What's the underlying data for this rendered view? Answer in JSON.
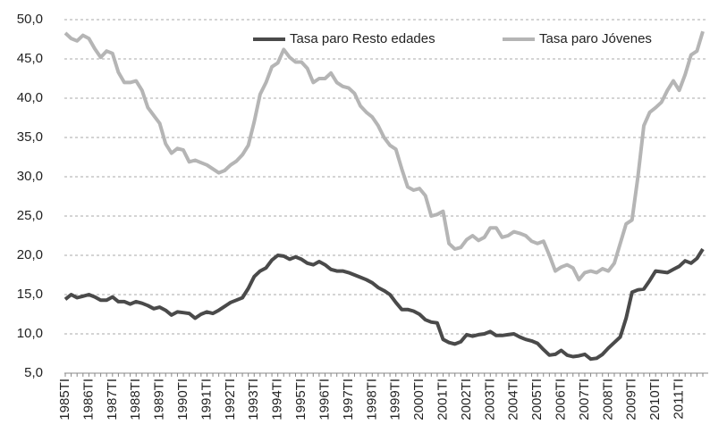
{
  "chart_data": {
    "type": "line",
    "categories": [
      "1985TI",
      null,
      null,
      null,
      "1986TI",
      null,
      null,
      null,
      "1987TI",
      null,
      null,
      null,
      "1988TI",
      null,
      null,
      null,
      "1989TI",
      null,
      null,
      null,
      "1990TI",
      null,
      null,
      null,
      "1991TI",
      null,
      null,
      null,
      "1992TI",
      null,
      null,
      null,
      "1993TI",
      null,
      null,
      null,
      "1994TI",
      null,
      null,
      null,
      "1995TI",
      null,
      null,
      null,
      "1996TI",
      null,
      null,
      null,
      "1997TI",
      null,
      null,
      null,
      "1998TI",
      null,
      null,
      null,
      "1999TI",
      null,
      null,
      null,
      "2000TI",
      null,
      null,
      null,
      "2001TI",
      null,
      null,
      null,
      "2002TI",
      null,
      null,
      null,
      "2003TI",
      null,
      null,
      null,
      "2004TI",
      null,
      null,
      null,
      "2005TI",
      null,
      null,
      null,
      "2006TI",
      null,
      null,
      null,
      "2007TI",
      null,
      null,
      null,
      "2008TI",
      null,
      null,
      null,
      "2009TI",
      null,
      null,
      null,
      "2010TI",
      null,
      null,
      null,
      "2011TI",
      null,
      null,
      null,
      null
    ],
    "series": [
      {
        "name": "Tasa paro Resto edades",
        "color": "#4a4a4a",
        "values": [
          14.4,
          15.0,
          14.6,
          14.8,
          15.0,
          14.7,
          14.3,
          14.3,
          14.7,
          14.1,
          14.1,
          13.8,
          14.1,
          13.9,
          13.6,
          13.2,
          13.4,
          13.0,
          12.4,
          12.8,
          12.7,
          12.6,
          12.0,
          12.5,
          12.8,
          12.6,
          13.0,
          13.5,
          14.0,
          14.3,
          14.6,
          15.8,
          17.3,
          18.0,
          18.4,
          19.4,
          20.0,
          19.9,
          19.5,
          19.8,
          19.5,
          19.0,
          18.8,
          19.2,
          18.8,
          18.2,
          18.0,
          18.0,
          17.8,
          17.5,
          17.2,
          16.9,
          16.5,
          15.9,
          15.5,
          15.0,
          14.0,
          13.1,
          13.1,
          12.9,
          12.5,
          11.8,
          11.5,
          11.4,
          9.3,
          8.9,
          8.7,
          9.0,
          9.9,
          9.7,
          9.9,
          10.0,
          10.3,
          9.8,
          9.8,
          9.9,
          10.0,
          9.6,
          9.3,
          9.1,
          8.8,
          8.0,
          7.3,
          7.4,
          7.9,
          7.3,
          7.1,
          7.2,
          7.4,
          6.8,
          6.9,
          7.4,
          8.2,
          8.9,
          9.6,
          12.0,
          15.3,
          15.6,
          15.7,
          16.8,
          18.0,
          17.9,
          17.8,
          18.2,
          18.6,
          19.3,
          19.0,
          19.6,
          20.8
        ]
      },
      {
        "name": "Tasa paro Jóvenes",
        "color": "#b5b5b5",
        "values": [
          48.3,
          47.6,
          47.3,
          48.0,
          47.6,
          46.3,
          45.2,
          46.0,
          45.7,
          43.3,
          42.0,
          42.0,
          42.2,
          41.0,
          38.8,
          37.8,
          36.8,
          34.2,
          33.0,
          33.6,
          33.4,
          31.9,
          32.1,
          31.8,
          31.5,
          31.0,
          30.5,
          30.8,
          31.5,
          32.0,
          32.8,
          34.0,
          37.0,
          40.5,
          42.0,
          44.0,
          44.5,
          46.2,
          45.2,
          44.6,
          44.6,
          43.8,
          42.0,
          42.5,
          42.5,
          43.2,
          42.0,
          41.5,
          41.3,
          40.6,
          39.0,
          38.2,
          37.6,
          36.5,
          35.0,
          34.0,
          33.5,
          31.0,
          28.7,
          28.3,
          28.5,
          27.6,
          25.0,
          25.2,
          25.6,
          21.5,
          20.8,
          21.0,
          22.0,
          22.5,
          21.9,
          22.3,
          23.5,
          23.5,
          22.3,
          22.5,
          23.0,
          22.8,
          22.5,
          21.8,
          21.5,
          21.8,
          20.0,
          18.0,
          18.5,
          18.8,
          18.4,
          16.9,
          17.8,
          18.0,
          17.8,
          18.3,
          18.0,
          19.0,
          21.5,
          24.0,
          24.5,
          30.0,
          36.5,
          38.2,
          38.8,
          39.5,
          41.0,
          42.2,
          41.0,
          43.0,
          45.5,
          46.0,
          48.5
        ]
      }
    ],
    "ylim": [
      5,
      50
    ],
    "yticks": [
      {
        "value": 5,
        "label": "5,0"
      },
      {
        "value": 10,
        "label": "10,0"
      },
      {
        "value": 15,
        "label": "15,0"
      },
      {
        "value": 20,
        "label": "20,0"
      },
      {
        "value": 25,
        "label": "25,0"
      },
      {
        "value": 30,
        "label": "30,0"
      },
      {
        "value": 35,
        "label": "35,0"
      },
      {
        "value": 40,
        "label": "40,0"
      },
      {
        "value": 45,
        "label": "45,0"
      },
      {
        "value": 50,
        "label": "50,0"
      }
    ],
    "grid": true,
    "legend": "top"
  }
}
